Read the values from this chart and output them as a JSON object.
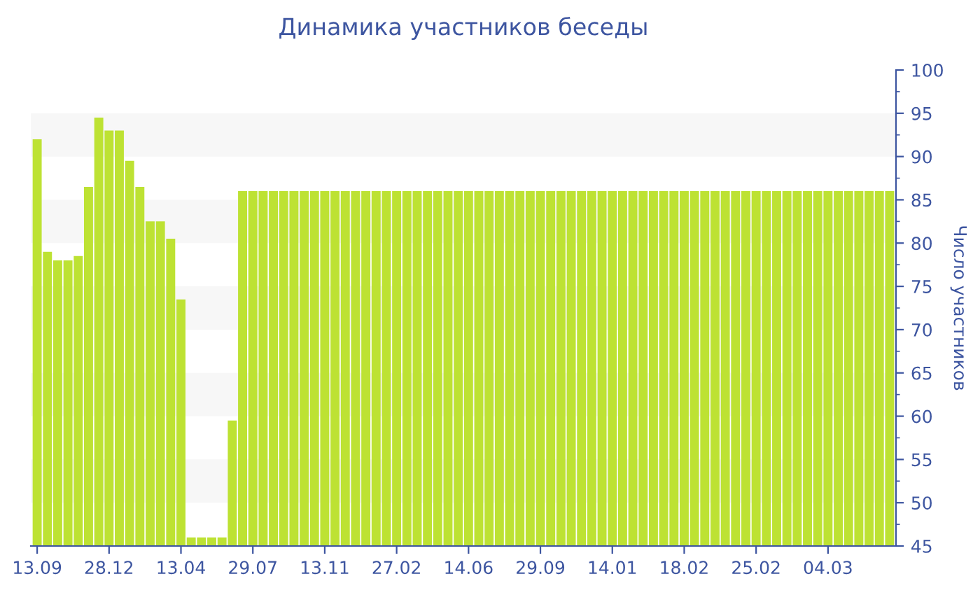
{
  "chart_data": {
    "type": "bar",
    "title": "Динамика участников беседы",
    "ylabel": "Число участников",
    "categories": [
      "13.09",
      null,
      null,
      null,
      null,
      null,
      null,
      "28.12",
      null,
      null,
      null,
      null,
      null,
      null,
      "13.04",
      null,
      null,
      null,
      null,
      null,
      null,
      "29.07",
      null,
      null,
      null,
      null,
      null,
      null,
      "13.11",
      null,
      null,
      null,
      null,
      null,
      null,
      "27.02",
      null,
      null,
      null,
      null,
      null,
      null,
      "14.06",
      null,
      null,
      null,
      null,
      null,
      null,
      "29.09",
      null,
      null,
      null,
      null,
      null,
      null,
      "14.01",
      null,
      null,
      null,
      null,
      null,
      null,
      "18.02",
      null,
      null,
      null,
      null,
      null,
      null,
      "25.02",
      null,
      null,
      null,
      null,
      null,
      null,
      "04.03",
      null,
      null,
      null,
      null,
      null,
      null
    ],
    "values": [
      92,
      79,
      78,
      78,
      78.5,
      86.5,
      94.5,
      93,
      93,
      89.5,
      86.5,
      82.5,
      82.5,
      80.5,
      73.5,
      46,
      46,
      46,
      46,
      59.5,
      86,
      86,
      86,
      86,
      86,
      86,
      86,
      86,
      86,
      86,
      86,
      86,
      86,
      86,
      86,
      86,
      86,
      86,
      86,
      86,
      86,
      86,
      86,
      86,
      86,
      86,
      86,
      86,
      86,
      86,
      86,
      86,
      86,
      86,
      86,
      86,
      86,
      86,
      86,
      86,
      86,
      86,
      86,
      86,
      86,
      86,
      86,
      86,
      86,
      86,
      86,
      86,
      86,
      86,
      86,
      86,
      86,
      86,
      86,
      86,
      86,
      86,
      86,
      86
    ],
    "color": "#bde233",
    "ylim": [
      45,
      100
    ],
    "yticks": [
      45,
      {
        "value": 47.5,
        "label": null
      },
      50,
      {
        "value": 52.5,
        "label": null
      },
      55,
      {
        "value": 57.5,
        "label": null
      },
      60,
      {
        "value": 62.5,
        "label": null
      },
      65,
      {
        "value": 67.5,
        "label": null
      },
      70,
      {
        "value": 72.5,
        "label": null
      },
      75,
      {
        "value": 77.5,
        "label": null
      },
      80,
      {
        "value": 82.5,
        "label": null
      },
      85,
      {
        "value": 87.5,
        "label": null
      },
      90,
      {
        "value": 92.5,
        "label": null
      },
      95,
      {
        "value": 97.5,
        "label": null
      },
      100
    ],
    "bands": [
      {
        "axis": "y",
        "from": 50,
        "to": 55,
        "color": "#f7f7f7"
      },
      {
        "axis": "y",
        "from": 60,
        "to": 65,
        "color": "#f7f7f7"
      },
      {
        "axis": "y",
        "from": 70,
        "to": 75,
        "color": "#f7f7f7"
      },
      {
        "axis": "y",
        "from": 80,
        "to": 85,
        "color": "#f7f7f7"
      },
      {
        "axis": "y",
        "from": 90,
        "to": 95,
        "color": "#f7f7f7"
      }
    ],
    "grid": false,
    "legend": false
  }
}
